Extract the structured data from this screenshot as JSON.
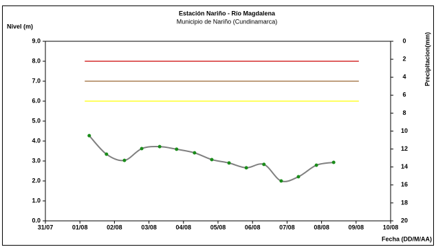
{
  "chart_data": {
    "type": "line",
    "title": "Estación Nariño  - Río Magdalena",
    "subtitle": "Municipio de Nariño (Cundinamarca)",
    "y_label": "Nivel (m)",
    "y2_label": "Precipitacion(mm)",
    "x_label": "Fecha (DD/M/AA)",
    "x": [
      1.27,
      1.77,
      2.29,
      2.79,
      3.31,
      3.8,
      4.32,
      4.82,
      5.32,
      5.82,
      6.33,
      6.83,
      7.33,
      7.85,
      8.35
    ],
    "series": [
      {
        "color": "#808080",
        "marker_color": "#1a8c1a",
        "values": [
          4.27,
          3.34,
          3.03,
          3.62,
          3.72,
          3.59,
          3.41,
          3.07,
          2.9,
          2.66,
          2.83,
          2.0,
          2.21,
          2.79,
          2.93
        ]
      }
    ],
    "xlim": [
      0,
      10
    ],
    "xticks": [
      {
        "value": 0,
        "label": "31/07"
      },
      {
        "value": 1,
        "label": "01/08"
      },
      {
        "value": 2,
        "label": "02/08"
      },
      {
        "value": 3,
        "label": "03/08"
      },
      {
        "value": 4,
        "label": "04/08"
      },
      {
        "value": 5,
        "label": "05/08"
      },
      {
        "value": 6,
        "label": "06/08"
      },
      {
        "value": 7,
        "label": "07/08"
      },
      {
        "value": 8,
        "label": "08/08"
      },
      {
        "value": 9,
        "label": "09/08"
      },
      {
        "value": 10,
        "label": "10/08"
      }
    ],
    "ylim": [
      0,
      9
    ],
    "yticks": [
      {
        "value": 0,
        "label": "0.0"
      },
      {
        "value": 1,
        "label": "1.0"
      },
      {
        "value": 2,
        "label": "2.0"
      },
      {
        "value": 3,
        "label": "3.0"
      },
      {
        "value": 4,
        "label": "4.0"
      },
      {
        "value": 5,
        "label": "5.0"
      },
      {
        "value": 6,
        "label": "6.0"
      },
      {
        "value": 7,
        "label": "7.0"
      },
      {
        "value": 8,
        "label": "8.0"
      },
      {
        "value": 9,
        "label": "9.0"
      }
    ],
    "y2lim": [
      20,
      0
    ],
    "y2ticks": [
      0,
      2,
      4,
      6,
      8,
      10,
      12,
      14,
      16,
      18,
      20
    ],
    "reference_lines": [
      {
        "value": 8,
        "color": "#cc0000",
        "x_range": [
          1.14,
          9.08
        ]
      },
      {
        "value": 7,
        "color": "#996633",
        "x_range": [
          1.14,
          9.08
        ]
      },
      {
        "value": 6,
        "color": "#ffff00",
        "x_range": [
          1.14,
          9.08
        ]
      }
    ]
  }
}
